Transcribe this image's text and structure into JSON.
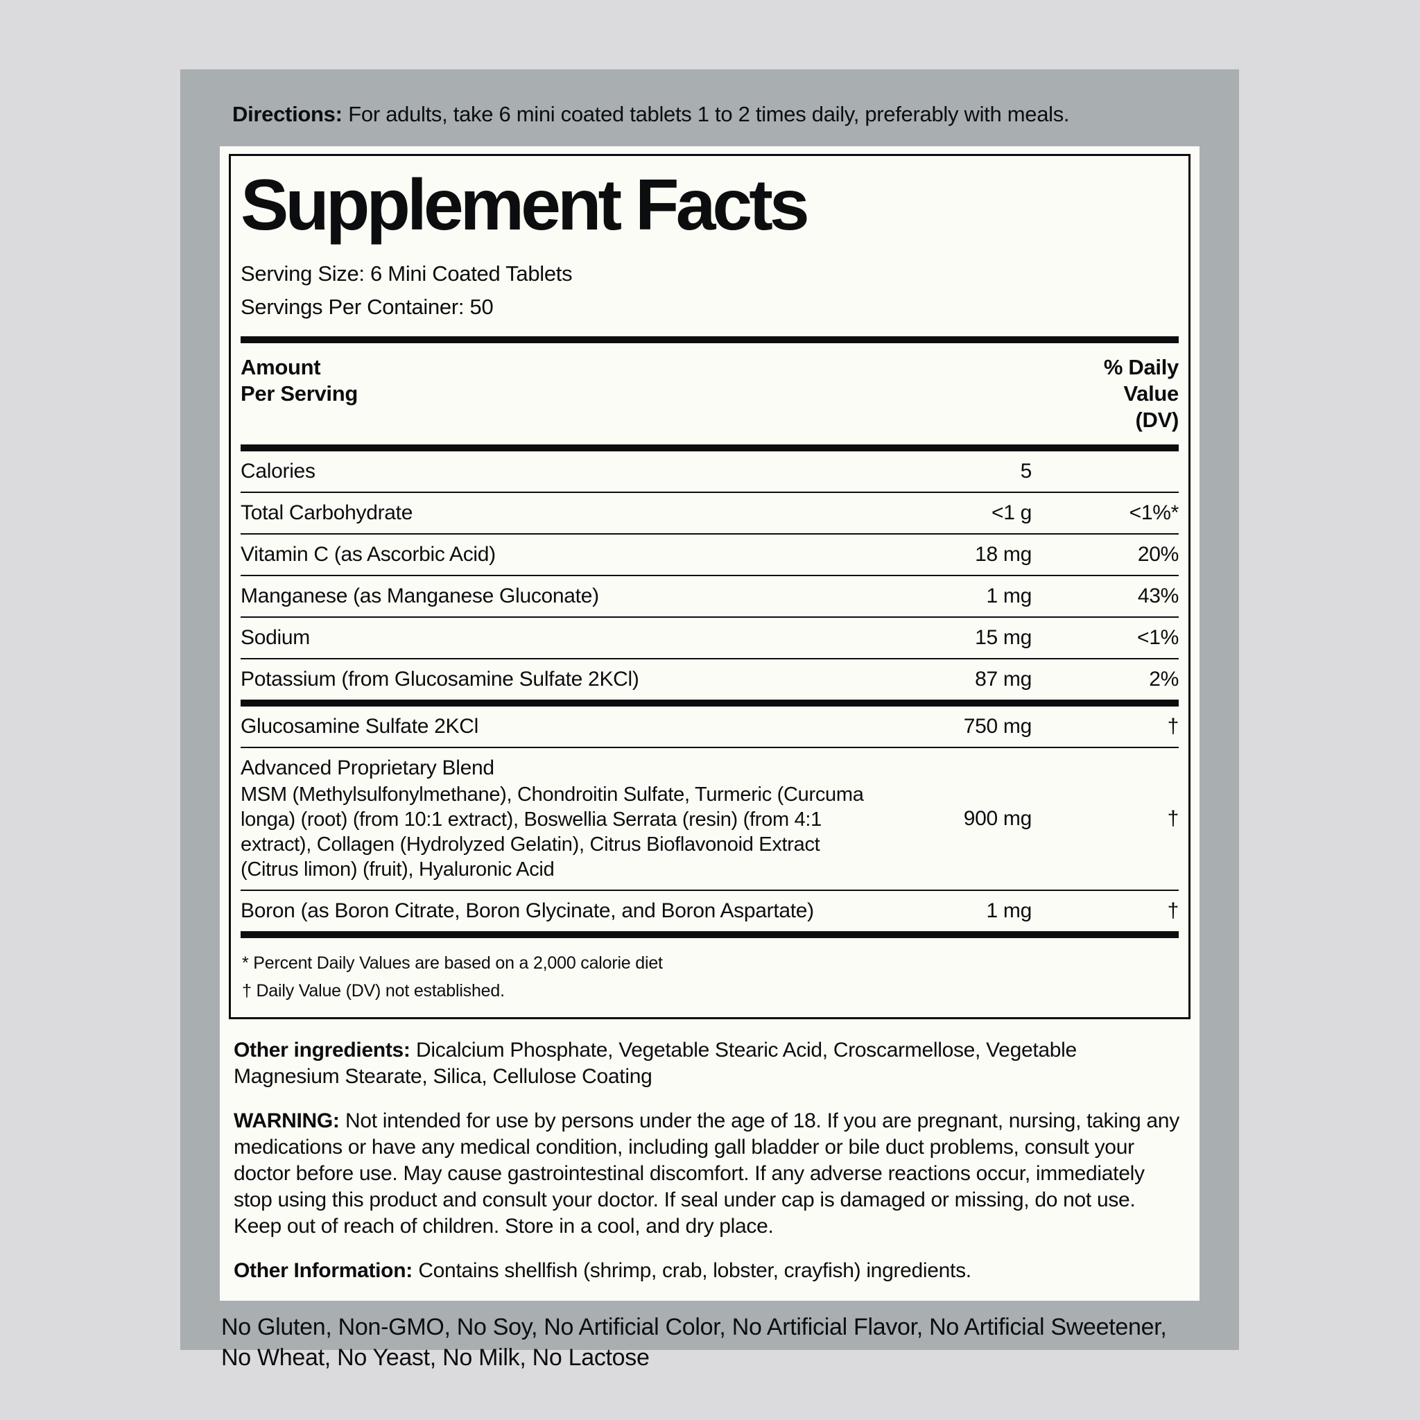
{
  "colors": {
    "page_bg": "#dbdadd",
    "panel_bg": "#a9aeb1",
    "label_bg": "#fbfcf6",
    "text": "#0c0d0e"
  },
  "directions": {
    "label": "Directions:",
    "text": "For adults, take 6 mini coated tablets 1 to 2 times daily, preferably with meals."
  },
  "facts": {
    "title": "Supplement Facts",
    "serving_size": "Serving Size: 6 Mini Coated Tablets",
    "servings_per_container": "Servings Per Container: 50",
    "header": {
      "amount_per_serving": "Amount\nPer Serving",
      "daily_value": "% Daily\nValue\n(DV)"
    },
    "rows": [
      {
        "name": "Calories",
        "amount": "5",
        "dv": ""
      },
      {
        "name": "Total Carbohydrate",
        "amount": "<1 g",
        "dv": "<1%*"
      },
      {
        "name": "Vitamin C (as Ascorbic Acid)",
        "amount": "18 mg",
        "dv": "20%"
      },
      {
        "name": "Manganese (as Manganese Gluconate)",
        "amount": "1 mg",
        "dv": "43%"
      },
      {
        "name": "Sodium",
        "amount": "15 mg",
        "dv": "<1%"
      },
      {
        "name": "Potassium (from Glucosamine Sulfate 2KCl)",
        "amount": "87 mg",
        "dv": "2%"
      },
      {
        "name": "Glucosamine Sulfate 2KCl",
        "amount": "750 mg",
        "dv": "†"
      },
      {
        "name": "Advanced Proprietary Blend",
        "description": "MSM (Methylsulfonylmethane), Chondroitin Sulfate, Turmeric (Curcuma longa) (root) (from 10:1 extract), Boswellia Serrata (resin) (from 4:1 extract), Collagen (Hydrolyzed Gelatin), Citrus Bioflavonoid Extract (Citrus limon) (fruit), Hyaluronic Acid",
        "amount": "900 mg",
        "dv": "†"
      },
      {
        "name": "Boron (as Boron Citrate, Boron Glycinate, and Boron Aspartate)",
        "amount": "1 mg",
        "dv": "†"
      }
    ],
    "footnotes": [
      "* Percent Daily Values are based on a 2,000 calorie diet",
      "† Daily Value (DV) not established."
    ]
  },
  "other_ingredients": {
    "label": "Other ingredients:",
    "text": "Dicalcium Phosphate, Vegetable Stearic Acid, Croscarmellose, Vegetable Magnesium Stearate, Silica, Cellulose Coating"
  },
  "warning": {
    "label": "WARNING:",
    "text": "Not intended for use by persons under the age of 18. If you are pregnant, nursing, taking any medications or have any medical condition, including gall bladder or bile duct problems, consult your doctor before use. May cause gastrointestinal discomfort. If any adverse reactions occur, immediately stop using this product and consult your doctor. If seal under cap is damaged or missing, do not use. Keep out of reach of children. Store in a cool, and dry place."
  },
  "other_information": {
    "label": "Other Information:",
    "text": "Contains shellfish (shrimp, crab, lobster, crayfish) ingredients."
  },
  "claims": "No Gluten, Non-GMO, No Soy, No Artificial Color, No Artificial Flavor, No Artificial Sweetener, No Wheat, No Yeast, No Milk, No Lactose"
}
